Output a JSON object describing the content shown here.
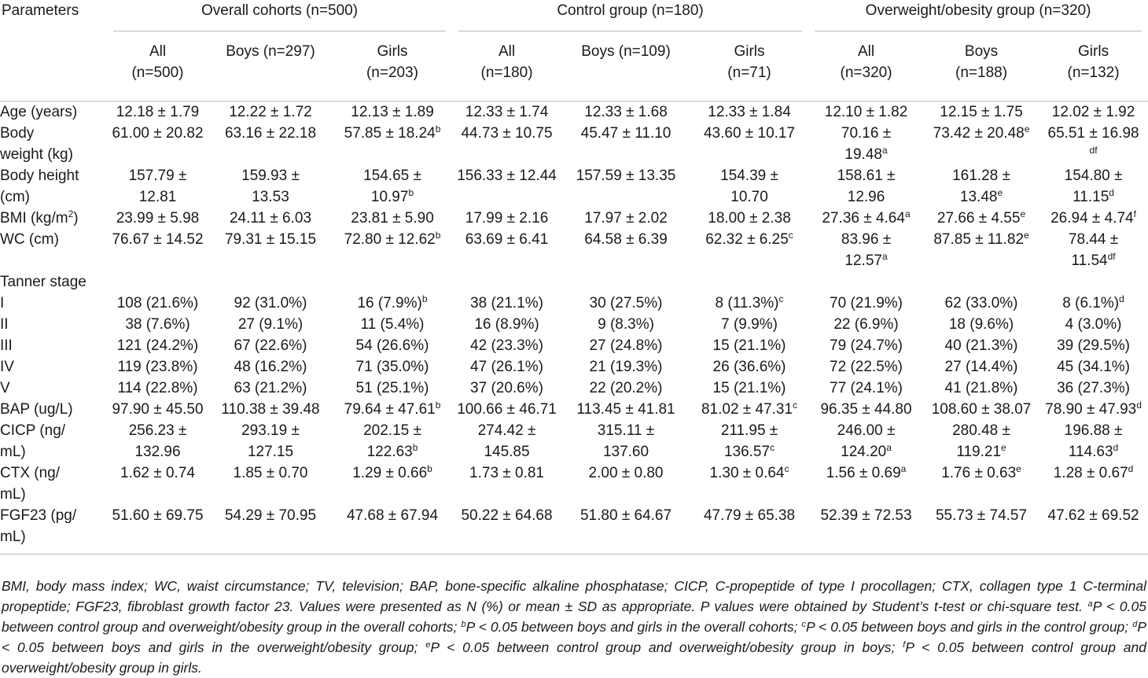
{
  "table": {
    "param_header": "Parameters",
    "groups": [
      "Overall cohorts (n=500)",
      "Control group (n=180)",
      "Overweight/obesity group (n=320)"
    ],
    "subheaders": [
      [
        "All",
        "(n=500)"
      ],
      [
        "Boys (n=297)",
        ""
      ],
      [
        "Girls",
        "(n=203)"
      ],
      [
        "All",
        "(n=180)"
      ],
      [
        "Boys (n=109)",
        ""
      ],
      [
        "Girls",
        "(n=71)"
      ],
      [
        "All",
        "(n=320)"
      ],
      [
        "Boys",
        "(n=188)"
      ],
      [
        "Girls",
        "(n=132)"
      ]
    ],
    "rows": [
      {
        "label": [
          "Age (years)"
        ],
        "cells": [
          [
            [
              "12.18 ± 1.79",
              ""
            ]
          ],
          [
            [
              "12.22 ± 1.72",
              ""
            ]
          ],
          [
            [
              "12.13 ± 1.89",
              ""
            ]
          ],
          [
            [
              "12.33 ± 1.74",
              ""
            ]
          ],
          [
            [
              "12.33 ± 1.68",
              ""
            ]
          ],
          [
            [
              "12.33 ± 1.84",
              ""
            ]
          ],
          [
            [
              "12.10 ± 1.82",
              ""
            ]
          ],
          [
            [
              "12.15 ± 1.75",
              ""
            ]
          ],
          [
            [
              "12.02 ± 1.92",
              ""
            ]
          ]
        ]
      },
      {
        "label": [
          "Body",
          "weight (kg)"
        ],
        "cells": [
          [
            [
              "61.00 ± 20.82",
              ""
            ]
          ],
          [
            [
              "63.16 ± 22.18",
              ""
            ]
          ],
          [
            [
              "57.85 ± 18.24",
              "b"
            ]
          ],
          [
            [
              "44.73 ± 10.75",
              ""
            ]
          ],
          [
            [
              "45.47 ± 11.10",
              ""
            ]
          ],
          [
            [
              "43.60 ± 10.17",
              ""
            ]
          ],
          [
            [
              "70.16 ±",
              ""
            ],
            [
              "19.48",
              "a"
            ]
          ],
          [
            [
              "73.42 ± 20.48",
              "e"
            ]
          ],
          [
            [
              "65.51 ± 16.98",
              ""
            ],
            [
              "",
              "df"
            ]
          ]
        ]
      },
      {
        "label": [
          "Body height",
          "(cm)"
        ],
        "cells": [
          [
            [
              "157.79 ±",
              ""
            ],
            [
              "12.81",
              ""
            ]
          ],
          [
            [
              "159.93 ±",
              ""
            ],
            [
              "13.53",
              ""
            ]
          ],
          [
            [
              "154.65 ±",
              ""
            ],
            [
              "10.97",
              "b"
            ]
          ],
          [
            [
              "156.33 ± 12.44",
              ""
            ]
          ],
          [
            [
              "157.59 ± 13.35",
              ""
            ]
          ],
          [
            [
              "154.39 ±",
              ""
            ],
            [
              "10.70",
              ""
            ]
          ],
          [
            [
              "158.61 ±",
              ""
            ],
            [
              "12.96",
              ""
            ]
          ],
          [
            [
              "161.28 ±",
              ""
            ],
            [
              "13.48",
              "e"
            ]
          ],
          [
            [
              "154.80 ±",
              ""
            ],
            [
              "11.15",
              "d"
            ]
          ]
        ]
      },
      {
        "label": [
          "BMI (kg/m",
          "2",
          ")"
        ],
        "supLabel": true,
        "cells": [
          [
            [
              "23.99 ± 5.98",
              ""
            ]
          ],
          [
            [
              "24.11 ± 6.03",
              ""
            ]
          ],
          [
            [
              "23.81 ± 5.90",
              ""
            ]
          ],
          [
            [
              "17.99 ± 2.16",
              ""
            ]
          ],
          [
            [
              "17.97 ± 2.02",
              ""
            ]
          ],
          [
            [
              "18.00 ± 2.38",
              ""
            ]
          ],
          [
            [
              "27.36 ± 4.64",
              "a"
            ]
          ],
          [
            [
              "27.66 ± 4.55",
              "e"
            ]
          ],
          [
            [
              "26.94 ± 4.74",
              "f"
            ]
          ]
        ]
      },
      {
        "label": [
          "WC (cm)"
        ],
        "cells": [
          [
            [
              "76.67 ± 14.52",
              ""
            ]
          ],
          [
            [
              "79.31 ± 15.15",
              ""
            ]
          ],
          [
            [
              "72.80 ± 12.62",
              "b"
            ]
          ],
          [
            [
              "63.69 ± 6.41",
              ""
            ]
          ],
          [
            [
              "64.58 ± 6.39",
              ""
            ]
          ],
          [
            [
              "62.32 ± 6.25",
              "c"
            ]
          ],
          [
            [
              "83.96 ±",
              ""
            ],
            [
              "12.57",
              "a"
            ]
          ],
          [
            [
              "87.85 ± 11.82",
              "e"
            ]
          ],
          [
            [
              "78.44 ±",
              ""
            ],
            [
              "11.54",
              "df"
            ]
          ]
        ]
      },
      {
        "label": [
          "Tanner stage"
        ],
        "section": true,
        "cells": [
          [
            [
              "",
              ""
            ]
          ],
          [
            [
              "",
              ""
            ]
          ],
          [
            [
              "",
              ""
            ]
          ],
          [
            [
              "",
              ""
            ]
          ],
          [
            [
              "",
              ""
            ]
          ],
          [
            [
              "",
              ""
            ]
          ],
          [
            [
              "",
              ""
            ]
          ],
          [
            [
              "",
              ""
            ]
          ],
          [
            [
              "",
              ""
            ]
          ]
        ]
      },
      {
        "label": [
          "I"
        ],
        "cells": [
          [
            [
              "108 (21.6%)",
              ""
            ]
          ],
          [
            [
              "92 (31.0%)",
              ""
            ]
          ],
          [
            [
              "16 (7.9%)",
              "b"
            ]
          ],
          [
            [
              "38 (21.1%)",
              ""
            ]
          ],
          [
            [
              "30 (27.5%)",
              ""
            ]
          ],
          [
            [
              "8 (11.3%)",
              "c"
            ]
          ],
          [
            [
              "70 (21.9%)",
              ""
            ]
          ],
          [
            [
              "62 (33.0%)",
              ""
            ]
          ],
          [
            [
              "8 (6.1%)",
              "d"
            ]
          ]
        ]
      },
      {
        "label": [
          "II"
        ],
        "cells": [
          [
            [
              "38 (7.6%)",
              ""
            ]
          ],
          [
            [
              "27 (9.1%)",
              ""
            ]
          ],
          [
            [
              "11 (5.4%)",
              ""
            ]
          ],
          [
            [
              "16 (8.9%)",
              ""
            ]
          ],
          [
            [
              "9 (8.3%)",
              ""
            ]
          ],
          [
            [
              "7 (9.9%)",
              ""
            ]
          ],
          [
            [
              "22 (6.9%)",
              ""
            ]
          ],
          [
            [
              "18 (9.6%)",
              ""
            ]
          ],
          [
            [
              "4 (3.0%)",
              ""
            ]
          ]
        ]
      },
      {
        "label": [
          "III"
        ],
        "cells": [
          [
            [
              "121 (24.2%)",
              ""
            ]
          ],
          [
            [
              "67 (22.6%)",
              ""
            ]
          ],
          [
            [
              "54 (26.6%)",
              ""
            ]
          ],
          [
            [
              "42 (23.3%)",
              ""
            ]
          ],
          [
            [
              "27 (24.8%)",
              ""
            ]
          ],
          [
            [
              "15 (21.1%)",
              ""
            ]
          ],
          [
            [
              "79 (24.7%)",
              ""
            ]
          ],
          [
            [
              "40 (21.3%)",
              ""
            ]
          ],
          [
            [
              "39 (29.5%)",
              ""
            ]
          ]
        ]
      },
      {
        "label": [
          "IV"
        ],
        "cells": [
          [
            [
              "119 (23.8%)",
              ""
            ]
          ],
          [
            [
              "48 (16.2%)",
              ""
            ]
          ],
          [
            [
              "71 (35.0%)",
              ""
            ]
          ],
          [
            [
              "47 (26.1%)",
              ""
            ]
          ],
          [
            [
              "21 (19.3%)",
              ""
            ]
          ],
          [
            [
              "26 (36.6%)",
              ""
            ]
          ],
          [
            [
              "72 (22.5%)",
              ""
            ]
          ],
          [
            [
              "27 (14.4%)",
              ""
            ]
          ],
          [
            [
              "45 (34.1%)",
              ""
            ]
          ]
        ]
      },
      {
        "label": [
          "V"
        ],
        "cells": [
          [
            [
              "114 (22.8%)",
              ""
            ]
          ],
          [
            [
              "63 (21.2%)",
              ""
            ]
          ],
          [
            [
              "51 (25.1%)",
              ""
            ]
          ],
          [
            [
              "37 (20.6%)",
              ""
            ]
          ],
          [
            [
              "22 (20.2%)",
              ""
            ]
          ],
          [
            [
              "15 (21.1%)",
              ""
            ]
          ],
          [
            [
              "77 (24.1%)",
              ""
            ]
          ],
          [
            [
              "41 (21.8%)",
              ""
            ]
          ],
          [
            [
              "36 (27.3%)",
              ""
            ]
          ]
        ]
      },
      {
        "label": [
          "BAP (ug/L)"
        ],
        "cells": [
          [
            [
              "97.90 ± 45.50",
              ""
            ]
          ],
          [
            [
              "110.38 ± 39.48",
              ""
            ]
          ],
          [
            [
              "79.64 ± 47.61",
              "b"
            ]
          ],
          [
            [
              "100.66 ± 46.71",
              ""
            ]
          ],
          [
            [
              "113.45 ± 41.81",
              ""
            ]
          ],
          [
            [
              "81.02 ± 47.31",
              "c"
            ]
          ],
          [
            [
              "96.35 ± 44.80",
              ""
            ]
          ],
          [
            [
              "108.60 ± 38.07",
              ""
            ]
          ],
          [
            [
              "78.90 ± 47.93",
              "d"
            ]
          ]
        ]
      },
      {
        "label": [
          "CICP (ng/",
          "mL)"
        ],
        "cells": [
          [
            [
              "256.23 ±",
              ""
            ],
            [
              "132.96",
              ""
            ]
          ],
          [
            [
              "293.19 ±",
              ""
            ],
            [
              "127.15",
              ""
            ]
          ],
          [
            [
              "202.15 ±",
              ""
            ],
            [
              "122.63",
              "b"
            ]
          ],
          [
            [
              "274.42 ±",
              ""
            ],
            [
              "145.85",
              ""
            ]
          ],
          [
            [
              "315.11 ±",
              ""
            ],
            [
              "137.60",
              ""
            ]
          ],
          [
            [
              "211.95 ±",
              ""
            ],
            [
              "136.57",
              "c"
            ]
          ],
          [
            [
              "246.00 ±",
              ""
            ],
            [
              "124.20",
              "a"
            ]
          ],
          [
            [
              "280.48 ±",
              ""
            ],
            [
              "119.21",
              "e"
            ]
          ],
          [
            [
              "196.88 ±",
              ""
            ],
            [
              "114.63",
              "d"
            ]
          ]
        ]
      },
      {
        "label": [
          "CTX (ng/",
          "mL)"
        ],
        "cells": [
          [
            [
              "1.62 ± 0.74",
              ""
            ]
          ],
          [
            [
              "1.85 ± 0.70",
              ""
            ]
          ],
          [
            [
              "1.29 ± 0.66",
              "b"
            ]
          ],
          [
            [
              "1.73 ± 0.81",
              ""
            ]
          ],
          [
            [
              "2.00 ± 0.80",
              ""
            ]
          ],
          [
            [
              "1.30 ± 0.64",
              "c"
            ]
          ],
          [
            [
              "1.56 ± 0.69",
              "a"
            ]
          ],
          [
            [
              "1.76 ± 0.63",
              "e"
            ]
          ],
          [
            [
              "1.28 ± 0.67",
              "d"
            ]
          ]
        ]
      },
      {
        "label": [
          "FGF23 (pg/",
          "mL)"
        ],
        "cells": [
          [
            [
              "51.60 ± 69.75",
              ""
            ]
          ],
          [
            [
              "54.29 ± 70.95",
              ""
            ]
          ],
          [
            [
              "47.68 ± 67.94",
              ""
            ]
          ],
          [
            [
              "50.22 ± 64.68",
              ""
            ]
          ],
          [
            [
              "51.80 ± 64.67",
              ""
            ]
          ],
          [
            [
              "47.79 ± 65.38",
              ""
            ]
          ],
          [
            [
              "52.39 ± 72.53",
              ""
            ]
          ],
          [
            [
              "55.73 ± 74.57",
              ""
            ]
          ],
          [
            [
              "47.62 ± 69.52",
              ""
            ]
          ]
        ]
      }
    ]
  },
  "footnote": {
    "lead": "BMI, body mass index; WC, waist circumstance; TV, television; BAP, bone-specific alkaline phosphatase; CICP, C-propeptide of type I procollagen; CTX, collagen type 1 C-terminal propeptide; FGF23, fibroblast growth factor 23. Values were presented as N (%) or mean ± SD as appropriate. P values were obtained by Student’s t-test or chi-square test. ",
    "items": [
      {
        "mark": "a",
        "text": "P < 0.05 between control group and overweight/obesity group in the overall cohorts; "
      },
      {
        "mark": "b",
        "text": "P < 0.05 between boys and girls in the overall cohorts; "
      },
      {
        "mark": "c",
        "text": "P < 0.05 between boys and girls in the control group; "
      },
      {
        "mark": "d",
        "text": "P < 0.05 between boys and girls in the overweight/obesity group; "
      },
      {
        "mark": "e",
        "text": "P < 0.05 between control group and overweight/obesity group in boys; "
      },
      {
        "mark": "f",
        "text": "P < 0.05 between control group and overweight/obesity group in girls."
      }
    ]
  }
}
